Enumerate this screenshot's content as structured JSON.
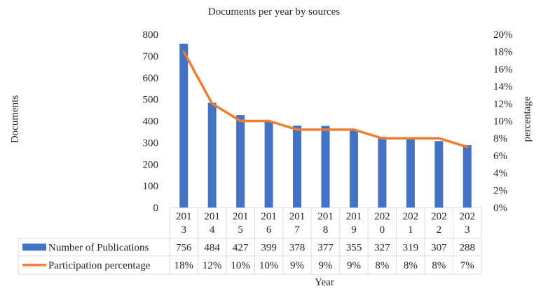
{
  "chart_data": {
    "type": "bar",
    "title": "Documents per year by sources",
    "xlabel": "Year",
    "ylabel": "Documents",
    "y2label": "percentage",
    "categories": [
      [
        "201",
        "3"
      ],
      [
        "201",
        "4"
      ],
      [
        "201",
        "5"
      ],
      [
        "201",
        "6"
      ],
      [
        "201",
        "7"
      ],
      [
        "201",
        "8"
      ],
      [
        "201",
        "9"
      ],
      [
        "202",
        "0"
      ],
      [
        "202",
        "1"
      ],
      [
        "202",
        "2"
      ],
      [
        "202",
        "3"
      ]
    ],
    "ylim": [
      0,
      800
    ],
    "y_ticks": [
      "0",
      "100",
      "200",
      "300",
      "400",
      "500",
      "600",
      "700",
      "800"
    ],
    "y2lim": [
      0,
      20
    ],
    "y2_ticks": [
      "0%",
      "2%",
      "4%",
      "6%",
      "8%",
      "10%",
      "12%",
      "14%",
      "16%",
      "18%",
      "20%"
    ],
    "grid": false,
    "legend": "data table",
    "series": [
      {
        "name": "Number of Publications",
        "type": "bar",
        "axis": "left",
        "color": "#4472C4",
        "values": [
          756,
          484,
          427,
          399,
          378,
          377,
          355,
          327,
          319,
          307,
          288
        ],
        "table_labels": [
          "756",
          "484",
          "427",
          "399",
          "378",
          "377",
          "355",
          "327",
          "319",
          "307",
          "288"
        ]
      },
      {
        "name": "Participation percentage",
        "type": "line",
        "axis": "right",
        "color": "#ED7D31",
        "values": [
          18,
          12,
          10,
          10,
          9,
          9,
          9,
          8,
          8,
          8,
          7
        ],
        "table_labels": [
          "18%",
          "12%",
          "10%",
          "10%",
          "9%",
          "9%",
          "9%",
          "8%",
          "8%",
          "8%",
          "7%"
        ]
      }
    ]
  }
}
